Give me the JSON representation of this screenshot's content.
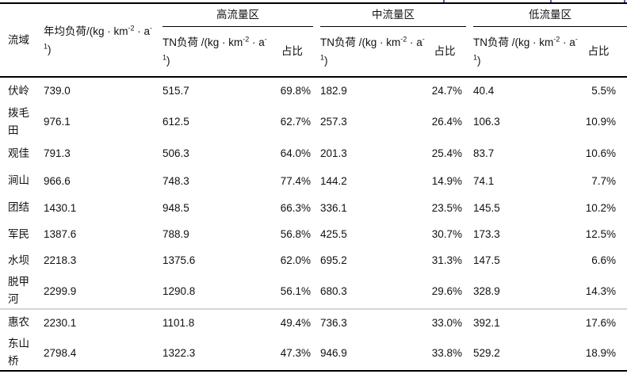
{
  "table": {
    "col_headers": {
      "basin": "流域",
      "annual_unit": {
        "p1": "年均负荷/(kg · km",
        "s1": "-2",
        "p2": " · a",
        "s2": "-",
        "s3": "1",
        "p3": ")"
      },
      "groups": [
        {
          "label": "高流量区"
        },
        {
          "label": "中流量区"
        },
        {
          "label": "低流量区"
        }
      ],
      "tn_unit": {
        "p1": "TN负荷 /(kg · km",
        "s1": "-2",
        "p2": " · a",
        "s2": "-",
        "s3": "1",
        "p3": ")"
      },
      "pct_label": "占比"
    },
    "rows": [
      {
        "basin": "伏岭",
        "annual": "739.0",
        "tn_high": "515.7",
        "pct_high": "69.8%",
        "tn_mid": "182.9",
        "pct_mid": "24.7%",
        "tn_low": "40.4",
        "pct_low": "5.5%"
      },
      {
        "basin": "拨毛田",
        "annual": "976.1",
        "tn_high": "612.5",
        "pct_high": "62.7%",
        "tn_mid": "257.3",
        "pct_mid": "26.4%",
        "tn_low": "106.3",
        "pct_low": "10.9%"
      },
      {
        "basin": "观佳",
        "annual": "791.3",
        "tn_high": "506.3",
        "pct_high": "64.0%",
        "tn_mid": "201.3",
        "pct_mid": "25.4%",
        "tn_low": "83.7",
        "pct_low": "10.6%"
      },
      {
        "basin": "涧山",
        "annual": "966.6",
        "tn_high": "748.3",
        "pct_high": "77.4%",
        "tn_mid": "144.2",
        "pct_mid": "14.9%",
        "tn_low": "74.1",
        "pct_low": "7.7%"
      },
      {
        "basin": "团结",
        "annual": "1430.1",
        "tn_high": "948.5",
        "pct_high": "66.3%",
        "tn_mid": "336.1",
        "pct_mid": "23.5%",
        "tn_low": "145.5",
        "pct_low": "10.2%"
      },
      {
        "basin": "军民",
        "annual": "1387.6",
        "tn_high": "788.9",
        "pct_high": "56.8%",
        "tn_mid": "425.5",
        "pct_mid": "30.7%",
        "tn_low": "173.3",
        "pct_low": "12.5%"
      },
      {
        "basin": "水坝",
        "annual": "2218.3",
        "tn_high": "1375.6",
        "pct_high": "62.0%",
        "tn_mid": "695.2",
        "pct_mid": "31.3%",
        "tn_low": "147.5",
        "pct_low": "6.6%"
      },
      {
        "basin": "脱甲河",
        "annual": "2299.9",
        "tn_high": "1290.8",
        "pct_high": "56.1%",
        "tn_mid": "680.3",
        "pct_mid": "29.6%",
        "tn_low": "328.9",
        "pct_low": "14.3%"
      },
      {
        "basin": "惠农",
        "annual": "2230.1",
        "tn_high": "1101.8",
        "pct_high": "49.4%",
        "tn_mid": "736.3",
        "pct_mid": "33.0%",
        "tn_low": "392.1",
        "pct_low": "17.6%",
        "sep_before": true
      },
      {
        "basin": "东山桥",
        "annual": "2798.4",
        "tn_high": "1322.3",
        "pct_high": "47.3%",
        "tn_mid": "946.9",
        "pct_mid": "33.8%",
        "tn_low": "529.2",
        "pct_low": "18.9%"
      }
    ],
    "separator_color": "#d4d4d4",
    "border_color": "#000000"
  }
}
